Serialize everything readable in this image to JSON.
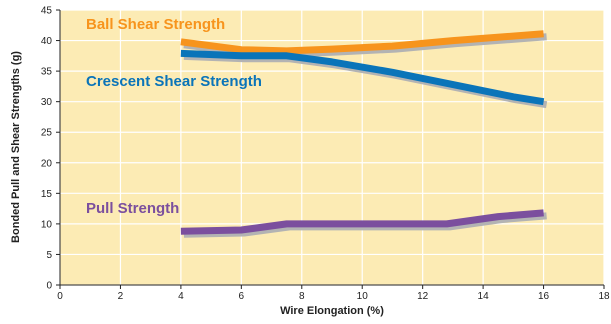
{
  "chart_data": {
    "type": "line",
    "xlabel": "Wire Elongation (%)",
    "ylabel": "Bonded Pull and Shear Strengths (g)",
    "xlim": [
      0,
      18
    ],
    "ylim": [
      0,
      45
    ],
    "x_ticks": [
      "0",
      "2",
      "4",
      "6",
      "8",
      "10",
      "12",
      "14",
      "16",
      "18"
    ],
    "y_ticks": [
      "0",
      "5",
      "10",
      "15",
      "20",
      "25",
      "30",
      "35",
      "40",
      "45"
    ],
    "grid": true,
    "legend": "none (series labeled directly on chart)",
    "background_color": "#fcebb4",
    "grid_color": "#ffffff",
    "shadow_color": "#b3b3b3",
    "series": [
      {
        "name": "Ball Shear Strength",
        "color": "#f7941d",
        "x": [
          4,
          6,
          7.5,
          9,
          11,
          13,
          16
        ],
        "y": [
          39.8,
          38.5,
          38.3,
          38.6,
          39.1,
          40.0,
          41.1
        ]
      },
      {
        "name": "Crescent Shear Strength",
        "color": "#0a74b9",
        "x": [
          4,
          6,
          7.5,
          9,
          11,
          13,
          15,
          16
        ],
        "y": [
          37.9,
          37.5,
          37.5,
          36.5,
          34.8,
          32.8,
          30.8,
          30.0
        ]
      },
      {
        "name": "Pull Strength",
        "color": "#7b4f9e",
        "x": [
          4,
          6,
          7.5,
          9,
          11,
          12.8,
          14.5,
          16
        ],
        "y": [
          8.8,
          9.0,
          10.0,
          10.0,
          10.0,
          10.0,
          11.2,
          11.8
        ]
      }
    ]
  }
}
